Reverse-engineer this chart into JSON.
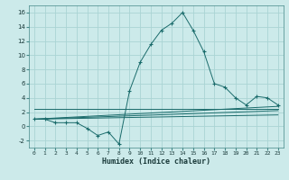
{
  "title": "",
  "xlabel": "Humidex (Indice chaleur)",
  "bg_color": "#cceaea",
  "grid_color": "#aad4d4",
  "line_color": "#1a6b6b",
  "xlim": [
    -0.5,
    23.5
  ],
  "ylim": [
    -3,
    17
  ],
  "xticks": [
    0,
    1,
    2,
    3,
    4,
    5,
    6,
    7,
    8,
    9,
    10,
    11,
    12,
    13,
    14,
    15,
    16,
    17,
    18,
    19,
    20,
    21,
    22,
    23
  ],
  "yticks": [
    -2,
    0,
    2,
    4,
    6,
    8,
    10,
    12,
    14,
    16
  ],
  "series": {
    "main": {
      "x": [
        0,
        1,
        2,
        3,
        4,
        5,
        6,
        7,
        8,
        9,
        10,
        11,
        12,
        13,
        14,
        15,
        16,
        17,
        18,
        19,
        20,
        21,
        22,
        23
      ],
      "y": [
        1,
        1,
        0.5,
        0.5,
        0.5,
        -0.3,
        -1.3,
        -0.8,
        -2.5,
        5,
        9,
        11.5,
        13.5,
        14.5,
        16,
        13.5,
        10.5,
        6,
        5.5,
        4,
        3,
        4.2,
        4,
        3
      ]
    },
    "refA": {
      "x": [
        0,
        23
      ],
      "y": [
        1.0,
        2.8
      ]
    },
    "refB": {
      "x": [
        0,
        23
      ],
      "y": [
        1.0,
        2.2
      ]
    },
    "refC": {
      "x": [
        0,
        23
      ],
      "y": [
        1.0,
        1.6
      ]
    },
    "refD": {
      "x": [
        0,
        23
      ],
      "y": [
        2.5,
        2.5
      ]
    }
  }
}
